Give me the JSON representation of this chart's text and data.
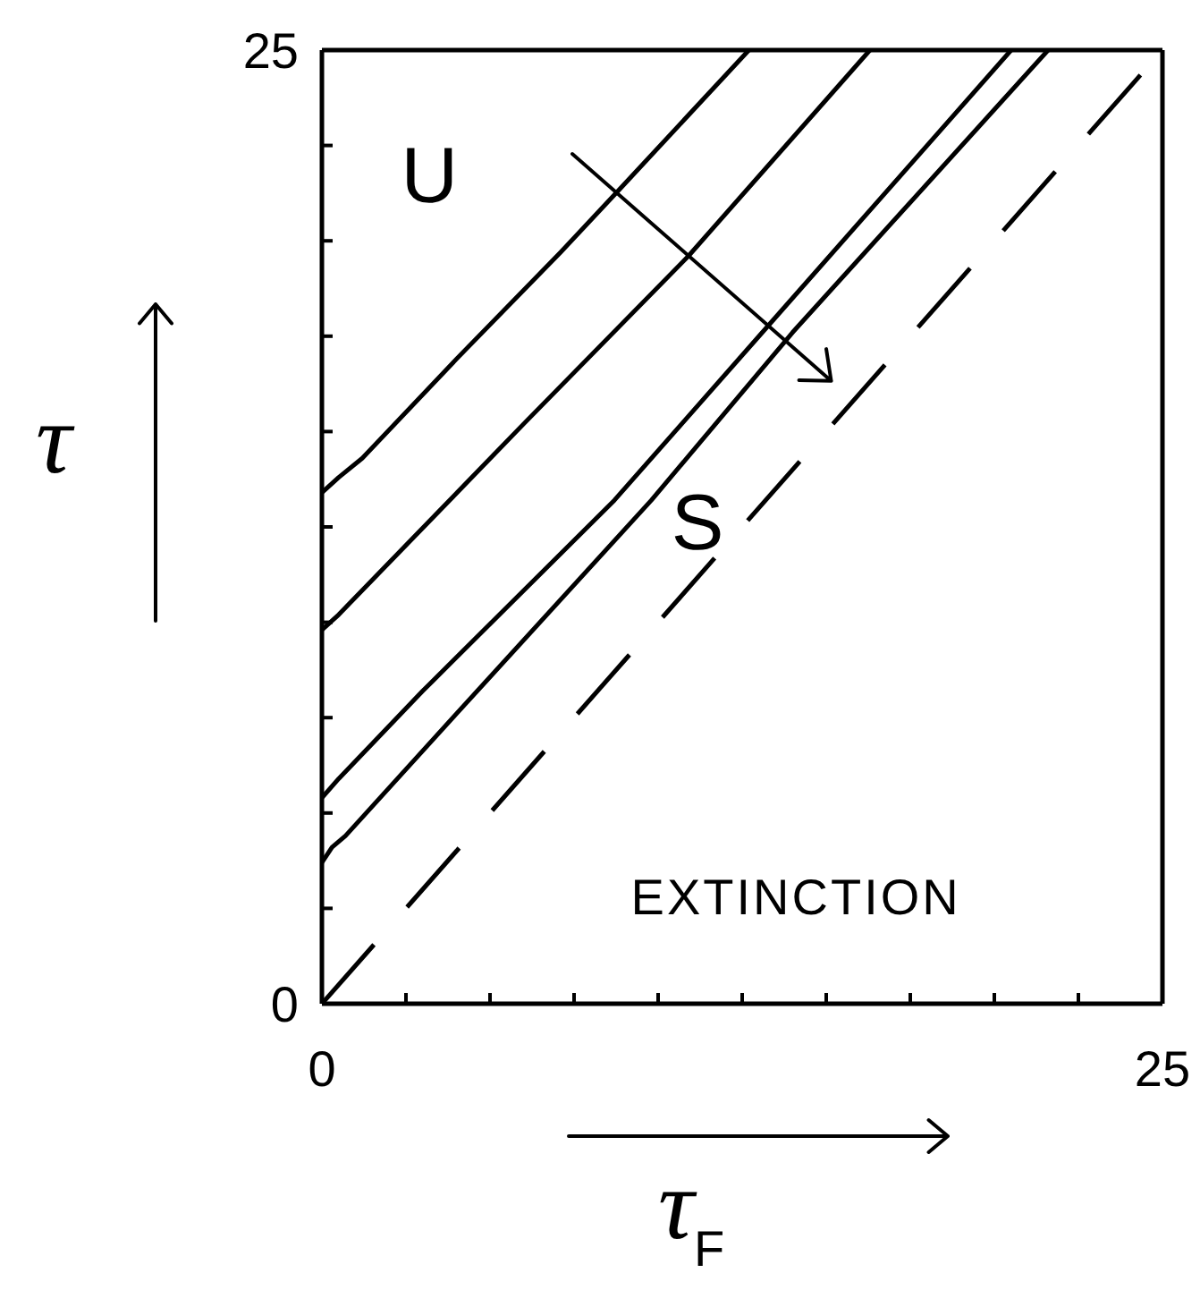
{
  "chart_data": {
    "type": "line",
    "xlabel": "τ$_{F}$",
    "ylabel": "τ",
    "annotations": [
      "U",
      "S",
      "EXTINCTION"
    ],
    "xlim": [
      0,
      25
    ],
    "ylim": [
      0,
      25
    ],
    "xticks": [
      0,
      {
        "value": 2.5,
        "label": null
      },
      {
        "value": 5,
        "label": null
      },
      {
        "value": 7.5,
        "label": null
      },
      {
        "value": 10,
        "label": null
      },
      {
        "value": 12.5,
        "label": null
      },
      {
        "value": 15,
        "label": null
      },
      {
        "value": 17.5,
        "label": null
      },
      {
        "value": 20,
        "label": null
      },
      {
        "value": 22.5,
        "label": null
      },
      25
    ],
    "yticks": [
      0,
      {
        "value": 2.5,
        "label": null
      },
      {
        "value": 5,
        "label": null
      },
      {
        "value": 7.5,
        "label": null
      },
      {
        "value": 10,
        "label": null
      },
      {
        "value": 12.5,
        "label": null
      },
      {
        "value": 15,
        "label": null
      },
      {
        "value": 17.5,
        "label": null
      },
      {
        "value": 20,
        "label": null
      },
      {
        "value": 22.5,
        "label": null
      },
      25
    ],
    "marker": "none",
    "line_style": "solid",
    "series": [
      {
        "color": "#000000",
        "x": [
          0,
          0.5,
          1.2,
          4,
          7.1,
          8.8,
          12.7
        ],
        "values": [
          13.4,
          13.8,
          14.3,
          16.9,
          19.7,
          21.3,
          25
        ]
      },
      {
        "color": "#000000",
        "x": [
          0,
          0.5,
          2.7,
          6,
          10.9,
          16.3
        ],
        "values": [
          9.8,
          10.2,
          12.2,
          15.2,
          19.6,
          25
        ]
      },
      {
        "color": "#000000",
        "x": [
          0,
          0.5,
          3,
          8.7,
          13.3,
          20.5
        ],
        "values": [
          5.4,
          5.9,
          8.2,
          13.2,
          17.8,
          25
        ]
      },
      {
        "color": "#000000",
        "x": [
          0,
          0.3,
          0.7,
          4,
          9.8,
          14,
          21.6
        ],
        "values": [
          3.7,
          4.1,
          4.4,
          7.6,
          13.2,
          17.6,
          25
        ]
      },
      {
        "color": "#000000",
        "line_style": "dashed",
        "x": [
          0,
          25
        ],
        "values": [
          0,
          25
        ]
      }
    ]
  }
}
